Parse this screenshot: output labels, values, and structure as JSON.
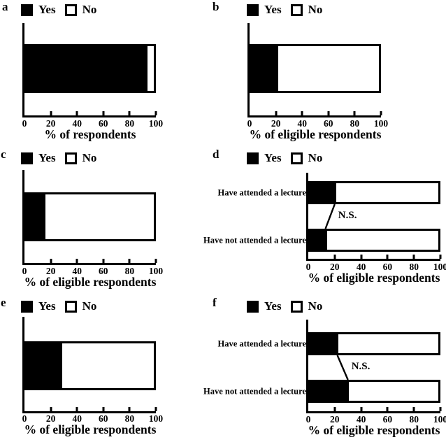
{
  "figure": {
    "background": "#ffffff",
    "ink": "#000000",
    "legend": {
      "yes_label": "Yes",
      "no_label": "No"
    }
  },
  "chart_data": [
    {
      "panel": "a",
      "type": "bar",
      "orientation": "horizontal",
      "stacked": true,
      "xlabel": "% of respondents",
      "xlim": [
        0,
        100
      ],
      "xticks": [
        0,
        20,
        40,
        60,
        80,
        100
      ],
      "categories": [
        ""
      ],
      "series": [
        {
          "name": "Yes",
          "color": "#000000",
          "values": [
            95
          ]
        },
        {
          "name": "No",
          "color": "#ffffff",
          "values": [
            5
          ]
        }
      ]
    },
    {
      "panel": "b",
      "type": "bar",
      "orientation": "horizontal",
      "stacked": true,
      "xlabel": "% of eligible respondents",
      "xlim": [
        0,
        100
      ],
      "xticks": [
        0,
        20,
        40,
        60,
        80,
        100
      ],
      "categories": [
        ""
      ],
      "series": [
        {
          "name": "Yes",
          "color": "#000000",
          "values": [
            21
          ]
        },
        {
          "name": "No",
          "color": "#ffffff",
          "values": [
            79
          ]
        }
      ]
    },
    {
      "panel": "c",
      "type": "bar",
      "orientation": "horizontal",
      "stacked": true,
      "xlabel": "% of eligible respondents",
      "xlim": [
        0,
        100
      ],
      "xticks": [
        0,
        20,
        40,
        60,
        80,
        100
      ],
      "categories": [
        ""
      ],
      "series": [
        {
          "name": "Yes",
          "color": "#000000",
          "values": [
            15
          ]
        },
        {
          "name": "No",
          "color": "#ffffff",
          "values": [
            85
          ]
        }
      ]
    },
    {
      "panel": "d",
      "type": "bar",
      "orientation": "horizontal",
      "stacked": true,
      "xlabel": "% of eligible respondents",
      "xlim": [
        0,
        100
      ],
      "xticks": [
        0,
        20,
        40,
        60,
        80,
        100
      ],
      "categories": [
        "Have attended a lecture",
        "Have not attended a lecture"
      ],
      "series": [
        {
          "name": "Yes",
          "color": "#000000",
          "values": [
            20,
            13
          ]
        },
        {
          "name": "No",
          "color": "#ffffff",
          "values": [
            80,
            87
          ]
        }
      ],
      "annotation": "N.S."
    },
    {
      "panel": "e",
      "type": "bar",
      "orientation": "horizontal",
      "stacked": true,
      "xlabel": "% of eligible respondents",
      "xlim": [
        0,
        100
      ],
      "xticks": [
        0,
        20,
        40,
        60,
        80,
        100
      ],
      "categories": [
        ""
      ],
      "series": [
        {
          "name": "Yes",
          "color": "#000000",
          "values": [
            28
          ]
        },
        {
          "name": "No",
          "color": "#ffffff",
          "values": [
            72
          ]
        }
      ]
    },
    {
      "panel": "f",
      "type": "bar",
      "orientation": "horizontal",
      "stacked": true,
      "xlabel": "% of eligible respondents",
      "xlim": [
        0,
        100
      ],
      "xticks": [
        0,
        20,
        40,
        60,
        80,
        100
      ],
      "categories": [
        "Have attended a lecture",
        "Have not attended a lecture"
      ],
      "series": [
        {
          "name": "Yes",
          "color": "#000000",
          "values": [
            22,
            30
          ]
        },
        {
          "name": "No",
          "color": "#ffffff",
          "values": [
            78,
            70
          ]
        }
      ],
      "annotation": "N.S."
    }
  ]
}
